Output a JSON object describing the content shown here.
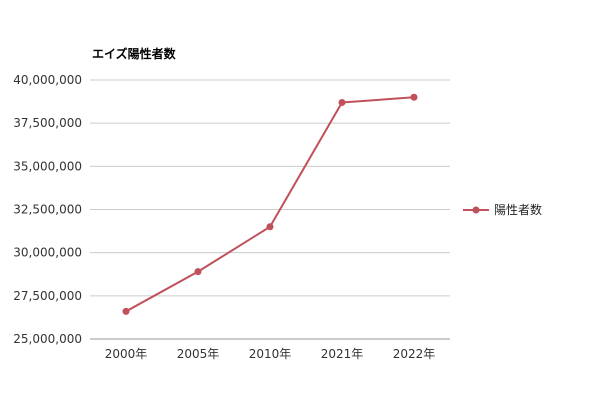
{
  "chart_data": {
    "type": "line",
    "title": "エイズ陽性者数",
    "xlabel": "",
    "ylabel": "",
    "categories": [
      "2000年",
      "2005年",
      "2010年",
      "2021年",
      "2022年"
    ],
    "series": [
      {
        "name": "陽性者数",
        "color": "#c0505a",
        "values": [
          26600000,
          28900000,
          31500000,
          38700000,
          39000000
        ]
      }
    ],
    "ylim": [
      25000000,
      40000000
    ],
    "yticks": [
      25000000,
      27500000,
      30000000,
      32500000,
      35000000,
      37500000,
      40000000
    ],
    "ytick_labels": [
      "25,000,000",
      "27,500,000",
      "30,000,000",
      "32,500,000",
      "35,000,000",
      "37,500,000",
      "40,000,000"
    ],
    "grid": true,
    "legend_position": "right",
    "gridline_color": "#cccccc",
    "axis_color": "#999999"
  }
}
